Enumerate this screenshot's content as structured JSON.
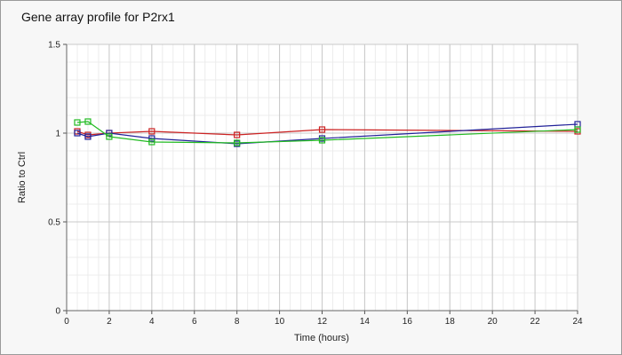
{
  "chart_data": {
    "type": "line",
    "title": "Gene array profile for P2rx1",
    "xlabel": "Time (hours)",
    "ylabel": "Ratio to Ctrl",
    "xlim": [
      0,
      24
    ],
    "ylim": [
      0,
      1.5
    ],
    "xticks": [
      0,
      2,
      4,
      6,
      8,
      10,
      12,
      14,
      16,
      18,
      20,
      22,
      24
    ],
    "yticks": [
      0,
      0.5,
      1,
      1.5
    ],
    "grid": true,
    "marker": "square",
    "series": [
      {
        "color": "#cc2222",
        "x": [
          0.5,
          1,
          2,
          4,
          8,
          12,
          24
        ],
        "y": [
          1.01,
          0.99,
          1.0,
          1.01,
          0.99,
          1.02,
          1.01
        ]
      },
      {
        "color": "#222299",
        "x": [
          0.5,
          1,
          2,
          4,
          8,
          12,
          24
        ],
        "y": [
          1.0,
          0.98,
          1.0,
          0.97,
          0.94,
          0.97,
          1.05
        ]
      },
      {
        "color": "#22bb22",
        "x": [
          0.5,
          1,
          2,
          4,
          8,
          12,
          24
        ],
        "y": [
          1.06,
          1.065,
          0.98,
          0.95,
          0.945,
          0.96,
          1.02
        ]
      }
    ]
  }
}
